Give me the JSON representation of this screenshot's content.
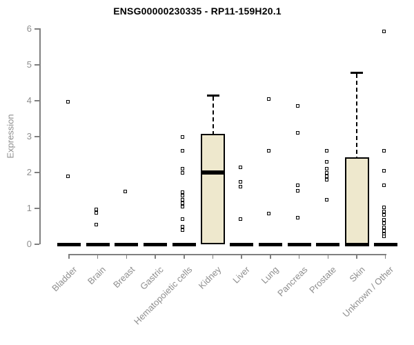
{
  "title": "ENSG00000230335 - RP11-159H20.1",
  "chart_data": {
    "type": "boxplot",
    "title": "ENSG00000230335 - RP11-159H20.1",
    "xlabel": "",
    "ylabel": "Expression",
    "ylim": [
      0,
      6
    ],
    "yticks": [
      "0",
      "1",
      "2",
      "3",
      "4",
      "5",
      "6"
    ],
    "grid": false,
    "legend": "none",
    "categories": [
      "Bladder",
      "Brain",
      "Breast",
      "Gastric",
      "Hematopoietic cells",
      "Kidney",
      "Liver",
      "Lung",
      "Pancreas",
      "Prostate",
      "Skin",
      "Unknown / Other"
    ],
    "boxes": [
      {
        "category": "Bladder",
        "q1": 0,
        "median": 0,
        "q3": 0,
        "whisker_high": 0
      },
      {
        "category": "Brain",
        "q1": 0,
        "median": 0,
        "q3": 0,
        "whisker_high": 0
      },
      {
        "category": "Breast",
        "q1": 0,
        "median": 0,
        "q3": 0,
        "whisker_high": 0
      },
      {
        "category": "Gastric",
        "q1": 0,
        "median": 0,
        "q3": 0,
        "whisker_high": 0
      },
      {
        "category": "Hematopoietic cells",
        "q1": 0,
        "median": 0,
        "q3": 0,
        "whisker_high": 0
      },
      {
        "category": "Kidney",
        "q1": 0,
        "median": 2.0,
        "q3": 3.08,
        "whisker_high": 4.15
      },
      {
        "category": "Liver",
        "q1": 0,
        "median": 0,
        "q3": 0,
        "whisker_high": 0
      },
      {
        "category": "Lung",
        "q1": 0,
        "median": 0,
        "q3": 0,
        "whisker_high": 0
      },
      {
        "category": "Pancreas",
        "q1": 0,
        "median": 0,
        "q3": 0,
        "whisker_high": 0
      },
      {
        "category": "Prostate",
        "q1": 0,
        "median": 0,
        "q3": 0,
        "whisker_high": 0
      },
      {
        "category": "Skin",
        "q1": 0,
        "median": 0,
        "q3": 2.43,
        "whisker_high": 4.78
      },
      {
        "category": "Unknown / Other",
        "q1": 0,
        "median": 0,
        "q3": 0,
        "whisker_high": 0
      }
    ],
    "points": [
      [
        3.97,
        1.9
      ],
      [
        0.97,
        0.87,
        0.55
      ],
      [
        1.48
      ],
      [],
      [
        3.0,
        2.6,
        2.1,
        2.0,
        1.45,
        1.35,
        1.25,
        1.15,
        1.05,
        0.7,
        0.5,
        0.4
      ],
      [],
      [
        2.15,
        1.75,
        1.6,
        0.7
      ],
      [
        4.05,
        2.6,
        0.85
      ],
      [
        3.85,
        3.1,
        1.65,
        1.5,
        0.75
      ],
      [
        2.6,
        2.3,
        2.1,
        2.0,
        1.9,
        1.8,
        1.25
      ],
      [],
      [
        5.93,
        2.6,
        2.05,
        1.65,
        1.02,
        0.92,
        0.82,
        0.68,
        0.58,
        0.48,
        0.38,
        0.28,
        0.22
      ]
    ],
    "colors": {
      "box_fill": "#EEE8CD",
      "box_border": "#000000",
      "point": "#000000",
      "axis": "#7f7f7f",
      "tick_label": "#8e8e8e",
      "title": "#000000",
      "background": "#ffffff"
    }
  }
}
